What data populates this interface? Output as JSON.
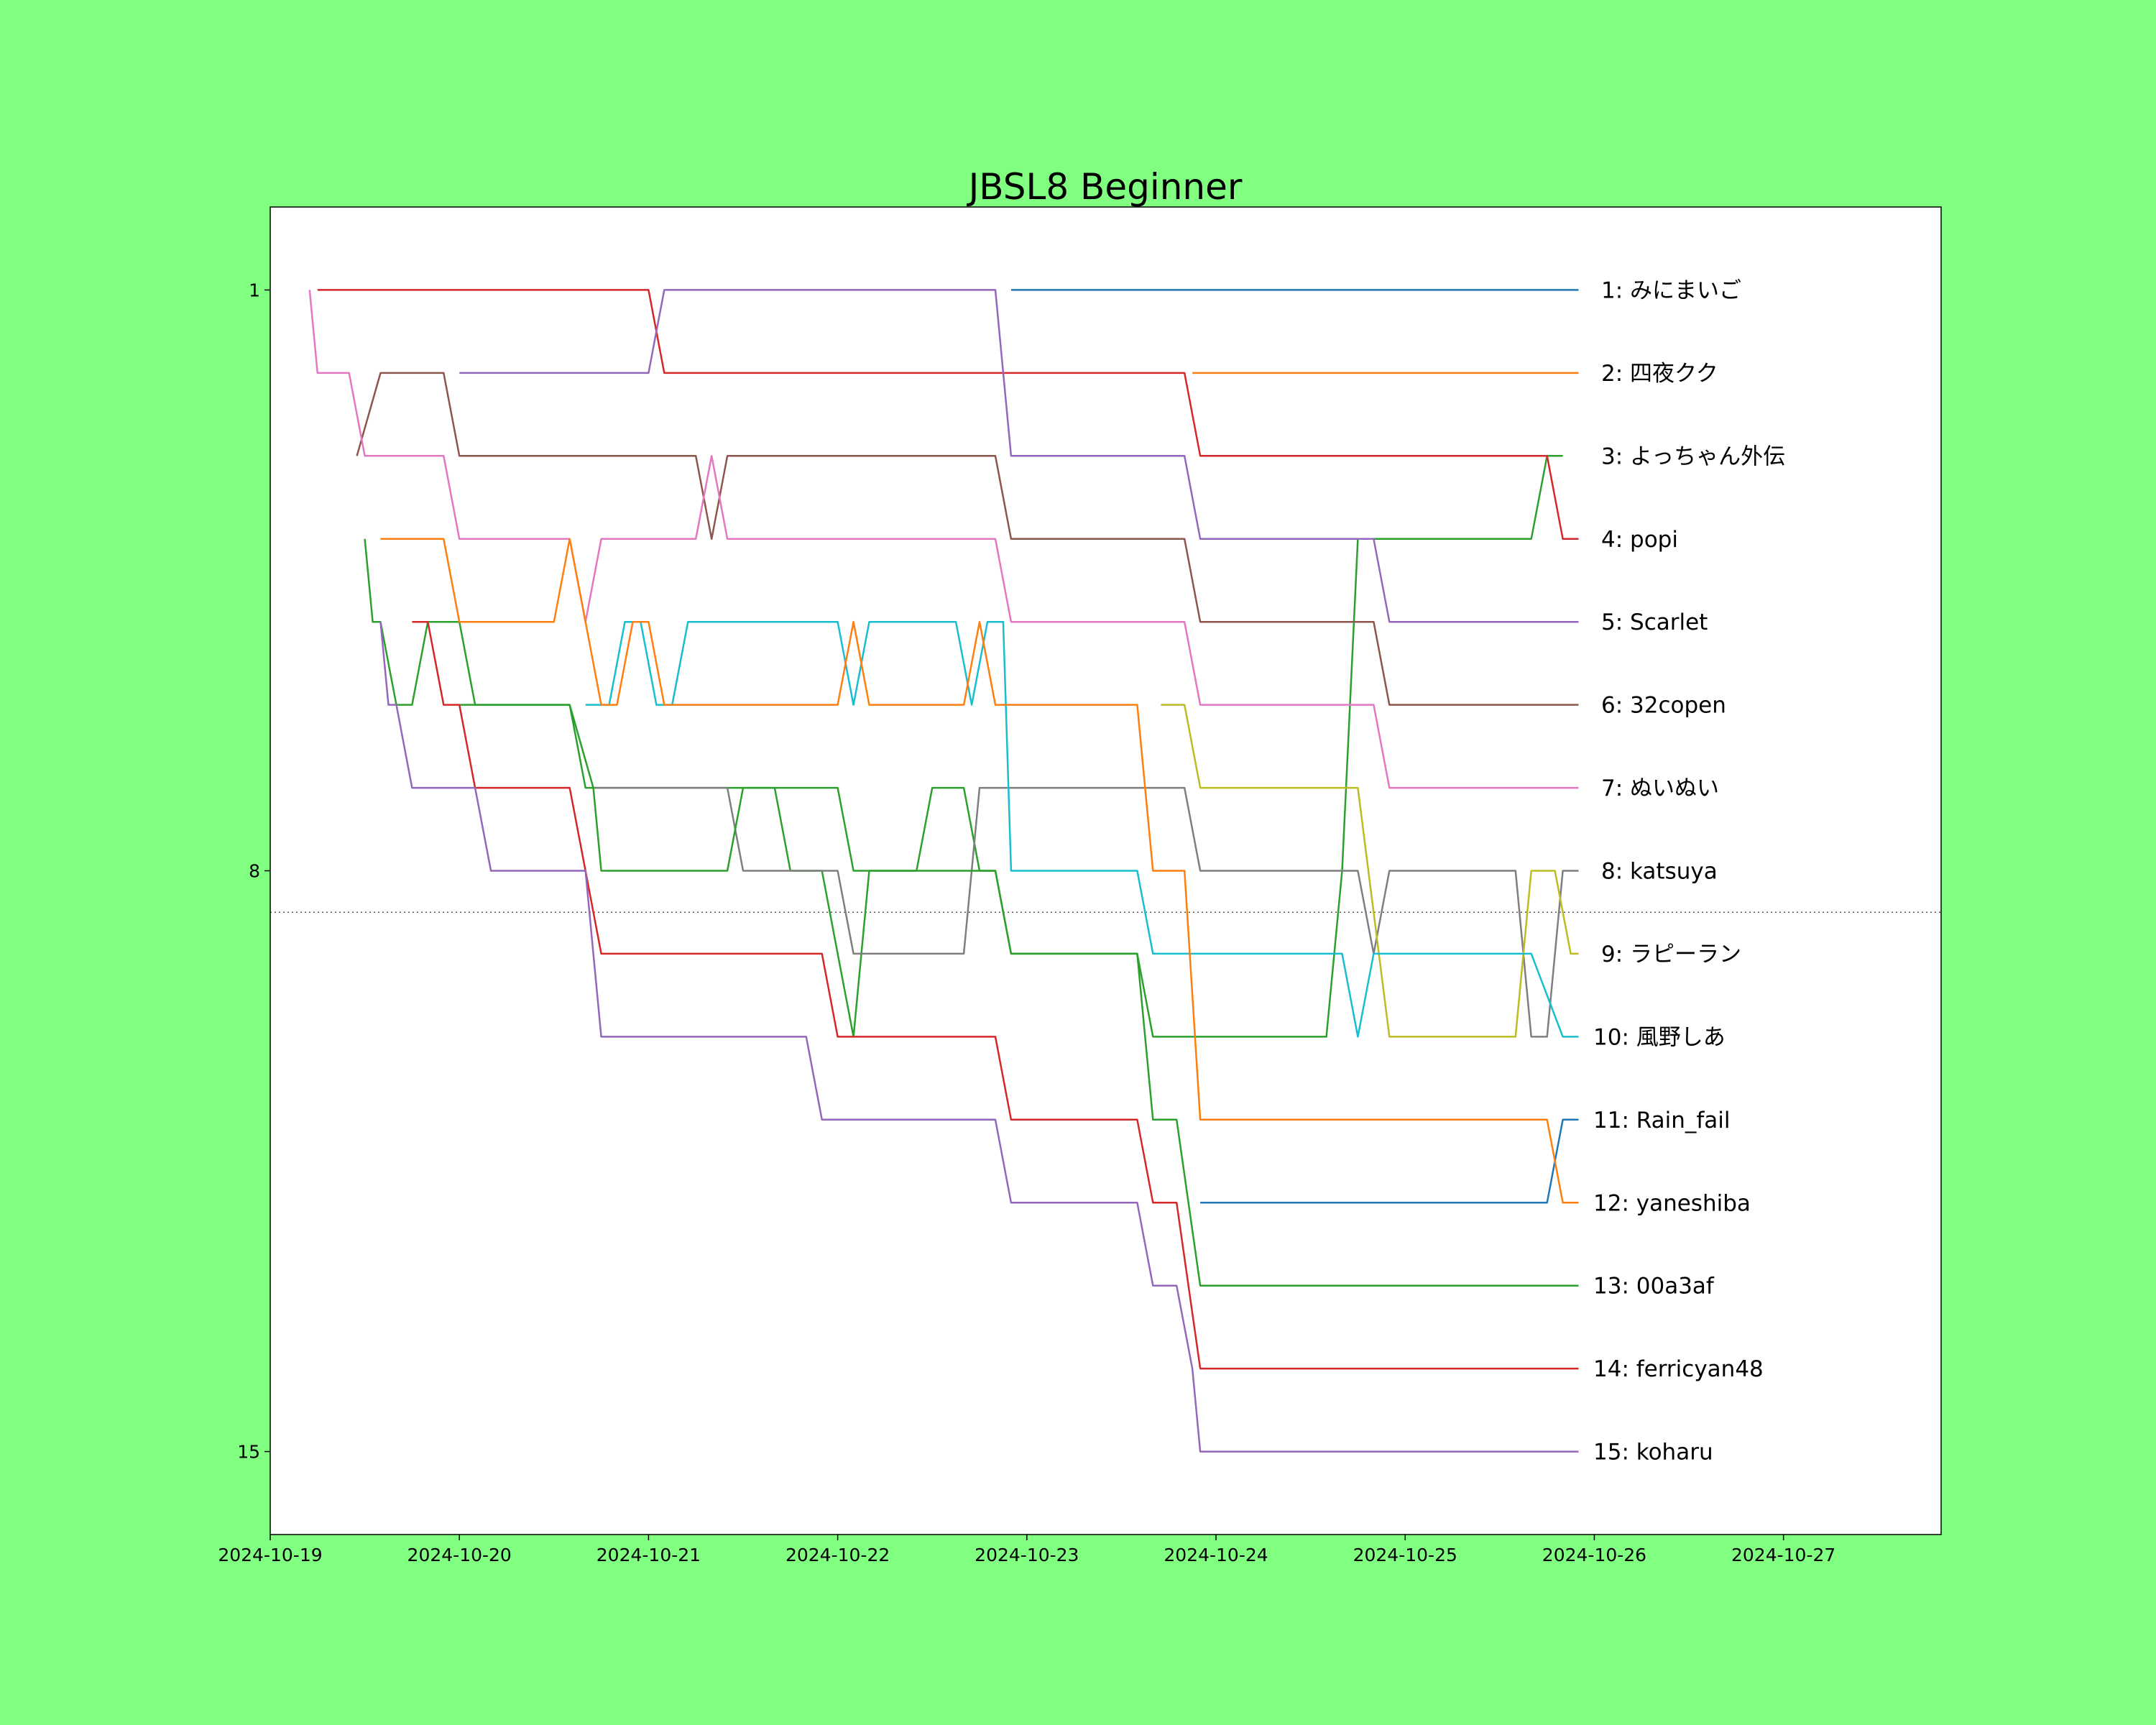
{
  "chart_data": {
    "type": "line",
    "title": "JBSL8 Beginner",
    "xlabel": "",
    "ylabel": "",
    "x_ticks": [
      "2024-10-19",
      "2024-10-20",
      "2024-10-21",
      "2024-10-22",
      "2024-10-23",
      "2024-10-24",
      "2024-10-25",
      "2024-10-26",
      "2024-10-27"
    ],
    "xlim": [
      "2024-10-19",
      "2024-10-27 20:00"
    ],
    "y_ticks": [
      1,
      8,
      15
    ],
    "ylim": [
      16,
      0
    ],
    "reference_line": {
      "y": 8.5,
      "style": "dotted"
    },
    "grid": false,
    "series": [
      {
        "name": "みにまいご",
        "color": "#1f77b4",
        "points": [
          [
            "2024-10-22 22:00",
            1
          ],
          [
            "2024-10-25 22:00",
            1
          ]
        ]
      },
      {
        "name": "四夜クク",
        "color": "#ff7f0e",
        "points": [
          [
            "2024-10-23 21:00",
            2
          ],
          [
            "2024-10-25 22:00",
            2
          ]
        ]
      },
      {
        "name": "よっちゃん外伝",
        "color": "#2ca02c",
        "points": [
          [
            "2024-10-19 12:00",
            4
          ],
          [
            "2024-10-19 13:00",
            5
          ],
          [
            "2024-10-19 14:00",
            5
          ],
          [
            "2024-10-19 16:00",
            6
          ],
          [
            "2024-10-19 18:00",
            6
          ],
          [
            "2024-10-19 20:00",
            5
          ],
          [
            "2024-10-20 00:00",
            5
          ],
          [
            "2024-10-20 02:00",
            6
          ],
          [
            "2024-10-20 14:00",
            6
          ],
          [
            "2024-10-20 16:00",
            7
          ],
          [
            "2024-10-21 16:00",
            7
          ],
          [
            "2024-10-21 18:00",
            8
          ],
          [
            "2024-10-21 22:00",
            8
          ],
          [
            "2024-10-22 00:00",
            9
          ],
          [
            "2024-10-22 02:00",
            10
          ],
          [
            "2024-10-22 04:00",
            8
          ],
          [
            "2024-10-22 10:00",
            8
          ],
          [
            "2024-10-22 12:00",
            7
          ],
          [
            "2024-10-22 16:00",
            7
          ],
          [
            "2024-10-22 18:00",
            8
          ],
          [
            "2024-10-22 20:00",
            8
          ],
          [
            "2024-10-22 22:00",
            9
          ],
          [
            "2024-10-23 14:00",
            9
          ],
          [
            "2024-10-23 16:00",
            10
          ],
          [
            "2024-10-24 14:00",
            10
          ],
          [
            "2024-10-24 16:00",
            8
          ],
          [
            "2024-10-24 18:00",
            4
          ],
          [
            "2024-10-25 16:00",
            4
          ],
          [
            "2024-10-25 18:00",
            3
          ],
          [
            "2024-10-25 20:00",
            3
          ]
        ]
      },
      {
        "name": "popi",
        "color": "#d62728",
        "points": [
          [
            "2024-10-19 06:00",
            1
          ],
          [
            "2024-10-21 00:00",
            1
          ],
          [
            "2024-10-21 02:00",
            2
          ],
          [
            "2024-10-23 20:00",
            2
          ],
          [
            "2024-10-23 22:00",
            3
          ],
          [
            "2024-10-25 18:00",
            3
          ],
          [
            "2024-10-25 20:00",
            4
          ],
          [
            "2024-10-25 22:00",
            4
          ]
        ]
      },
      {
        "name": "Scarlet",
        "color": "#9467bd",
        "points": [
          [
            "2024-10-20 00:00",
            2
          ],
          [
            "2024-10-21 00:00",
            2
          ],
          [
            "2024-10-21 02:00",
            1
          ],
          [
            "2024-10-22 20:00",
            1
          ],
          [
            "2024-10-22 22:00",
            3
          ],
          [
            "2024-10-23 20:00",
            3
          ],
          [
            "2024-10-23 22:00",
            4
          ],
          [
            "2024-10-24 20:00",
            4
          ],
          [
            "2024-10-24 22:00",
            5
          ],
          [
            "2024-10-25 22:00",
            5
          ]
        ]
      },
      {
        "name": "32copen",
        "color": "#8c564b",
        "points": [
          [
            "2024-10-19 11:00",
            3
          ],
          [
            "2024-10-19 14:00",
            2
          ],
          [
            "2024-10-19 22:00",
            2
          ],
          [
            "2024-10-20 00:00",
            3
          ],
          [
            "2024-10-21 06:00",
            3
          ],
          [
            "2024-10-21 08:00",
            4
          ],
          [
            "2024-10-21 10:00",
            3
          ],
          [
            "2024-10-22 20:00",
            3
          ],
          [
            "2024-10-22 22:00",
            4
          ],
          [
            "2024-10-23 20:00",
            4
          ],
          [
            "2024-10-23 22:00",
            5
          ],
          [
            "2024-10-24 20:00",
            5
          ],
          [
            "2024-10-24 22:00",
            6
          ],
          [
            "2024-10-25 22:00",
            6
          ]
        ]
      },
      {
        "name": "ぬいぬい",
        "color": "#e377c2",
        "points": [
          [
            "2024-10-19 05:00",
            1
          ],
          [
            "2024-10-19 06:00",
            2
          ],
          [
            "2024-10-19 10:00",
            2
          ],
          [
            "2024-10-19 12:00",
            3
          ],
          [
            "2024-10-19 22:00",
            3
          ],
          [
            "2024-10-20 00:00",
            4
          ],
          [
            "2024-10-20 14:00",
            4
          ],
          [
            "2024-10-20 16:00",
            5
          ],
          [
            "2024-10-20 18:00",
            4
          ],
          [
            "2024-10-21 06:00",
            4
          ],
          [
            "2024-10-21 08:00",
            3
          ],
          [
            "2024-10-21 10:00",
            4
          ],
          [
            "2024-10-22 20:00",
            4
          ],
          [
            "2024-10-22 22:00",
            5
          ],
          [
            "2024-10-23 20:00",
            5
          ],
          [
            "2024-10-23 22:00",
            6
          ],
          [
            "2024-10-24 20:00",
            6
          ],
          [
            "2024-10-24 22:00",
            7
          ],
          [
            "2024-10-25 22:00",
            7
          ]
        ]
      },
      {
        "name": "katsuya",
        "color": "#7f7f7f",
        "points": [
          [
            "2024-10-20 17:00",
            7
          ],
          [
            "2024-10-21 10:00",
            7
          ],
          [
            "2024-10-21 12:00",
            8
          ],
          [
            "2024-10-22 00:00",
            8
          ],
          [
            "2024-10-22 02:00",
            9
          ],
          [
            "2024-10-22 16:00",
            9
          ],
          [
            "2024-10-22 18:00",
            7
          ],
          [
            "2024-10-23 20:00",
            7
          ],
          [
            "2024-10-23 22:00",
            8
          ],
          [
            "2024-10-24 18:00",
            8
          ],
          [
            "2024-10-24 20:00",
            9
          ],
          [
            "2024-10-24 22:00",
            8
          ],
          [
            "2024-10-25 14:00",
            8
          ],
          [
            "2024-10-25 16:00",
            10
          ],
          [
            "2024-10-25 18:00",
            10
          ],
          [
            "2024-10-25 20:00",
            8
          ],
          [
            "2024-10-25 22:00",
            8
          ]
        ]
      },
      {
        "name": "ラピーラン",
        "color": "#bcbd22",
        "points": [
          [
            "2024-10-23 17:00",
            6
          ],
          [
            "2024-10-23 20:00",
            6
          ],
          [
            "2024-10-23 22:00",
            7
          ],
          [
            "2024-10-24 18:00",
            7
          ],
          [
            "2024-10-24 22:00",
            10
          ],
          [
            "2024-10-25 14:00",
            10
          ],
          [
            "2024-10-25 16:00",
            8
          ],
          [
            "2024-10-25 19:00",
            8
          ],
          [
            "2024-10-25 21:00",
            9
          ],
          [
            "2024-10-25 22:00",
            9
          ]
        ]
      },
      {
        "name": "風野しあ",
        "color": "#17becf",
        "points": [
          [
            "2024-10-20 16:00",
            6
          ],
          [
            "2024-10-20 19:00",
            6
          ],
          [
            "2024-10-20 21:00",
            5
          ],
          [
            "2024-10-20 23:00",
            5
          ],
          [
            "2024-10-21 01:00",
            6
          ],
          [
            "2024-10-21 03:00",
            6
          ],
          [
            "2024-10-21 05:00",
            5
          ],
          [
            "2024-10-22 00:00",
            5
          ],
          [
            "2024-10-22 02:00",
            6
          ],
          [
            "2024-10-22 04:00",
            5
          ],
          [
            "2024-10-22 15:00",
            5
          ],
          [
            "2024-10-22 17:00",
            6
          ],
          [
            "2024-10-22 19:00",
            5
          ],
          [
            "2024-10-22 21:00",
            5
          ],
          [
            "2024-10-22 22:00",
            8
          ],
          [
            "2024-10-23 14:00",
            8
          ],
          [
            "2024-10-23 16:00",
            9
          ],
          [
            "2024-10-24 16:00",
            9
          ],
          [
            "2024-10-24 18:00",
            10
          ],
          [
            "2024-10-24 20:00",
            9
          ],
          [
            "2024-10-25 16:00",
            9
          ],
          [
            "2024-10-25 20:00",
            10
          ],
          [
            "2024-10-25 22:00",
            10
          ]
        ]
      },
      {
        "name": "Rain_fail",
        "color": "#1f77b4",
        "points": [
          [
            "2024-10-23 22:00",
            12
          ],
          [
            "2024-10-25 18:00",
            12
          ],
          [
            "2024-10-25 20:00",
            11
          ],
          [
            "2024-10-25 22:00",
            11
          ]
        ]
      },
      {
        "name": "yaneshiba",
        "color": "#ff7f0e",
        "points": [
          [
            "2024-10-19 14:00",
            4
          ],
          [
            "2024-10-19 22:00",
            4
          ],
          [
            "2024-10-20 00:00",
            5
          ],
          [
            "2024-10-20 12:00",
            5
          ],
          [
            "2024-10-20 14:00",
            4
          ],
          [
            "2024-10-20 16:00",
            5
          ],
          [
            "2024-10-20 18:00",
            6
          ],
          [
            "2024-10-20 20:00",
            6
          ],
          [
            "2024-10-20 22:00",
            5
          ],
          [
            "2024-10-21 00:00",
            5
          ],
          [
            "2024-10-21 02:00",
            6
          ],
          [
            "2024-10-21 04:00",
            6
          ],
          [
            "2024-10-22 00:00",
            6
          ],
          [
            "2024-10-22 02:00",
            5
          ],
          [
            "2024-10-22 04:00",
            6
          ],
          [
            "2024-10-22 16:00",
            6
          ],
          [
            "2024-10-22 18:00",
            5
          ],
          [
            "2024-10-22 20:00",
            6
          ],
          [
            "2024-10-23 14:00",
            6
          ],
          [
            "2024-10-23 16:00",
            8
          ],
          [
            "2024-10-23 20:00",
            8
          ],
          [
            "2024-10-23 22:00",
            11
          ],
          [
            "2024-10-25 18:00",
            11
          ],
          [
            "2024-10-25 20:00",
            12
          ],
          [
            "2024-10-25 22:00",
            12
          ]
        ]
      },
      {
        "name": "00a3af",
        "color": "#2ca02c",
        "points": [
          [
            "2024-10-20 00:00",
            6
          ],
          [
            "2024-10-20 14:00",
            6
          ],
          [
            "2024-10-20 17:00",
            7
          ],
          [
            "2024-10-20 18:00",
            8
          ],
          [
            "2024-10-21 10:00",
            8
          ],
          [
            "2024-10-21 12:00",
            7
          ],
          [
            "2024-10-22 00:00",
            7
          ],
          [
            "2024-10-22 02:00",
            8
          ],
          [
            "2024-10-22 20:00",
            8
          ],
          [
            "2024-10-22 22:00",
            9
          ],
          [
            "2024-10-23 14:00",
            9
          ],
          [
            "2024-10-23 16:00",
            11
          ],
          [
            "2024-10-23 19:00",
            11
          ],
          [
            "2024-10-23 22:00",
            13
          ],
          [
            "2024-10-25 22:00",
            13
          ]
        ]
      },
      {
        "name": "ferricyan48",
        "color": "#d62728",
        "points": [
          [
            "2024-10-19 18:00",
            5
          ],
          [
            "2024-10-19 20:00",
            5
          ],
          [
            "2024-10-19 22:00",
            6
          ],
          [
            "2024-10-20 00:00",
            6
          ],
          [
            "2024-10-20 02:00",
            7
          ],
          [
            "2024-10-20 14:00",
            7
          ],
          [
            "2024-10-20 16:00",
            8
          ],
          [
            "2024-10-20 18:00",
            9
          ],
          [
            "2024-10-21 22:00",
            9
          ],
          [
            "2024-10-22 00:00",
            10
          ],
          [
            "2024-10-22 20:00",
            10
          ],
          [
            "2024-10-22 22:00",
            11
          ],
          [
            "2024-10-23 14:00",
            11
          ],
          [
            "2024-10-23 16:00",
            12
          ],
          [
            "2024-10-23 19:00",
            12
          ],
          [
            "2024-10-23 22:00",
            14
          ],
          [
            "2024-10-25 22:00",
            14
          ]
        ]
      },
      {
        "name": "koharu",
        "color": "#9467bd",
        "points": [
          [
            "2024-10-19 14:00",
            5
          ],
          [
            "2024-10-19 15:00",
            6
          ],
          [
            "2024-10-19 16:00",
            6
          ],
          [
            "2024-10-19 18:00",
            7
          ],
          [
            "2024-10-20 02:00",
            7
          ],
          [
            "2024-10-20 04:00",
            8
          ],
          [
            "2024-10-20 16:00",
            8
          ],
          [
            "2024-10-20 17:00",
            9
          ],
          [
            "2024-10-20 18:00",
            10
          ],
          [
            "2024-10-21 20:00",
            10
          ],
          [
            "2024-10-21 22:00",
            11
          ],
          [
            "2024-10-22 20:00",
            11
          ],
          [
            "2024-10-22 22:00",
            12
          ],
          [
            "2024-10-23 14:00",
            12
          ],
          [
            "2024-10-23 16:00",
            13
          ],
          [
            "2024-10-23 19:00",
            13
          ],
          [
            "2024-10-23 21:00",
            14
          ],
          [
            "2024-10-23 22:00",
            15
          ],
          [
            "2024-10-25 22:00",
            15
          ]
        ]
      }
    ],
    "rank_labels": [
      "1: みにまいご",
      "2: 四夜クク",
      "3: よっちゃん外伝",
      "4: popi",
      "5: Scarlet",
      "6: 32copen",
      "7: ぬいぬい",
      "8: katsuya",
      "9: ラピーラン",
      "10: 風野しあ",
      "11: Rain_fail",
      "12: yaneshiba",
      "13: 00a3af",
      "14: ferricyan48",
      "15: koharu"
    ]
  }
}
